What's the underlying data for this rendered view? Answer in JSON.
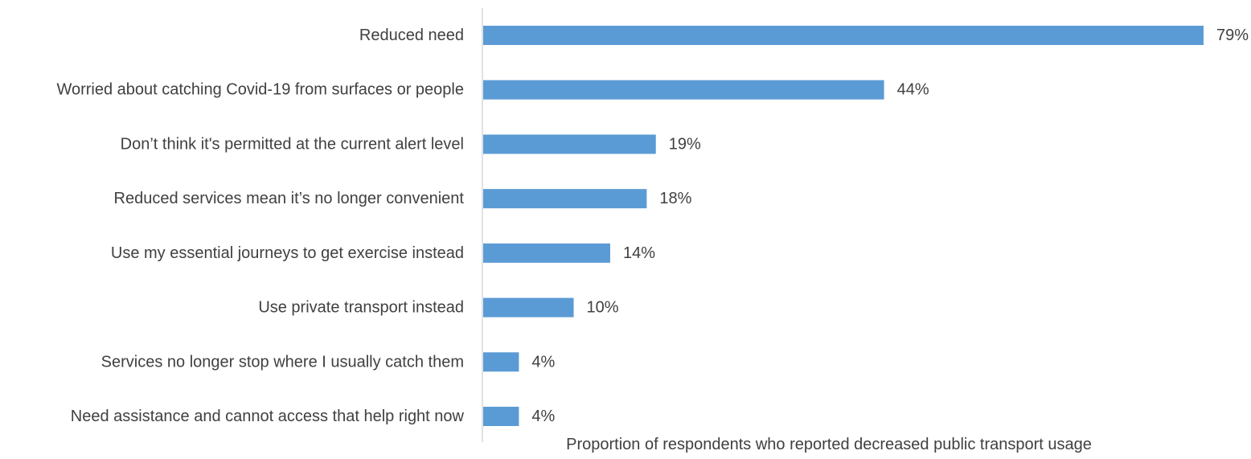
{
  "chart_data": {
    "type": "bar",
    "orientation": "horizontal",
    "categories": [
      "Reduced need",
      "Worried about catching Covid-19 from surfaces or people",
      "Don’t think it's permitted at the current alert level",
      "Reduced services mean it’s no longer convenient",
      "Use my essential journeys to get exercise instead",
      "Use private transport instead",
      "Services no longer stop where I usually catch them",
      "Need assistance and cannot access that help right now"
    ],
    "values": [
      79,
      44,
      19,
      18,
      14,
      10,
      4,
      4
    ],
    "value_labels": [
      "79%",
      "44%",
      "19%",
      "18%",
      "14%",
      "10%",
      "4%",
      "4%"
    ],
    "unit": "%",
    "title": "",
    "xlabel": "Proportion of respondents who reported decreased public transport usage",
    "ylabel": "",
    "xlim": [
      0,
      79
    ],
    "grid": false,
    "legend": "none",
    "bar_color": "#5B9BD5",
    "axis_color": "#D9D9D9",
    "text_color": "#404040"
  }
}
